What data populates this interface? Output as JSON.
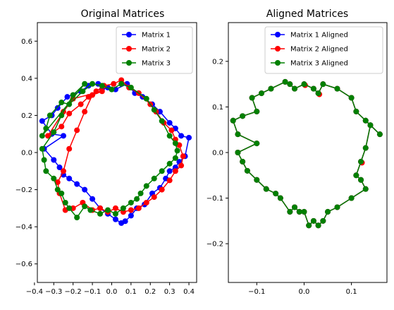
{
  "chart_data": [
    {
      "type": "line",
      "title": "Original Matrices",
      "xlim": [
        -0.385,
        0.44
      ],
      "ylim": [
        -0.7,
        0.7
      ],
      "xticks": [
        -0.4,
        -0.3,
        -0.2,
        -0.1,
        0.0,
        0.1,
        0.2,
        0.3,
        0.4
      ],
      "xtick_labels": [
        "−0.4",
        "−0.3",
        "−0.2",
        "−0.1",
        "0.0",
        "0.1",
        "0.2",
        "0.3",
        "0.4"
      ],
      "yticks": [
        -0.6,
        -0.4,
        -0.2,
        0.0,
        0.2,
        0.4,
        0.6
      ],
      "ytick_labels": [
        "−0.6",
        "−0.4",
        "−0.2",
        "0.0",
        "0.2",
        "0.4",
        "0.6"
      ],
      "grid": false,
      "legend_position": "top-right",
      "series": [
        {
          "name": "Matrix 1",
          "color": "#0000ff",
          "x": [
            -0.36,
            -0.31,
            -0.28,
            -0.23,
            -0.16,
            -0.12,
            -0.07,
            -0.05,
            -0.02,
            0.02,
            0.08,
            0.12,
            0.16,
            0.21,
            0.25,
            0.3,
            0.33,
            0.36,
            0.4,
            0.38,
            0.35,
            0.33,
            0.3,
            0.28,
            0.25,
            0.21,
            0.17,
            0.13,
            0.1,
            0.07,
            0.05,
            0.02,
            -0.02,
            -0.06,
            -0.1,
            -0.14,
            -0.18,
            -0.22,
            -0.25,
            -0.27,
            -0.3,
            -0.35,
            -0.25,
            -0.31
          ],
          "y": [
            0.17,
            0.2,
            0.24,
            0.3,
            0.33,
            0.36,
            0.37,
            0.34,
            0.35,
            0.34,
            0.37,
            0.32,
            0.3,
            0.26,
            0.22,
            0.16,
            0.13,
            0.09,
            0.08,
            -0.02,
            -0.05,
            -0.08,
            -0.1,
            -0.14,
            -0.19,
            -0.22,
            -0.28,
            -0.3,
            -0.34,
            -0.37,
            -0.38,
            -0.36,
            -0.33,
            -0.3,
            -0.25,
            -0.2,
            -0.17,
            -0.14,
            -0.12,
            -0.08,
            -0.04,
            0.02,
            0.09,
            0.1
          ]
        },
        {
          "name": "Matrix 2",
          "color": "#ff0000",
          "x": [
            -0.33,
            -0.26,
            -0.22,
            -0.16,
            -0.12,
            -0.08,
            -0.04,
            0.01,
            0.05,
            0.09,
            0.14,
            0.2,
            0.23,
            0.27,
            0.31,
            0.33,
            0.35,
            0.37,
            0.36,
            0.33,
            0.3,
            0.26,
            0.22,
            0.18,
            0.14,
            0.1,
            0.06,
            0.02,
            -0.02,
            -0.06,
            -0.1,
            -0.15,
            -0.2,
            -0.24,
            -0.27,
            -0.28,
            -0.25,
            -0.22,
            -0.18,
            -0.14,
            -0.1,
            -0.05,
            -0.2,
            -0.25
          ],
          "y": [
            0.09,
            0.14,
            0.21,
            0.26,
            0.3,
            0.33,
            0.36,
            0.37,
            0.39,
            0.35,
            0.32,
            0.26,
            0.22,
            0.16,
            0.12,
            0.07,
            0.04,
            -0.02,
            -0.07,
            -0.1,
            -0.15,
            -0.2,
            -0.24,
            -0.27,
            -0.3,
            -0.31,
            -0.32,
            -0.3,
            -0.32,
            -0.3,
            -0.31,
            -0.27,
            -0.3,
            -0.31,
            -0.22,
            -0.16,
            -0.1,
            0.02,
            0.12,
            0.22,
            0.31,
            0.33,
            0.29,
            0.22
          ]
        },
        {
          "name": "Matrix 3",
          "color": "#008000",
          "x": [
            -0.36,
            -0.34,
            -0.32,
            -0.26,
            -0.22,
            -0.15,
            -0.1,
            -0.05,
            0.0,
            0.05,
            0.1,
            0.18,
            0.22,
            0.26,
            0.3,
            0.33,
            0.34,
            0.33,
            0.3,
            0.26,
            0.22,
            0.18,
            0.15,
            0.13,
            0.1,
            0.06,
            0.02,
            -0.02,
            -0.06,
            -0.11,
            -0.14,
            -0.18,
            -0.22,
            -0.24,
            -0.26,
            -0.28,
            -0.3,
            -0.34,
            -0.35,
            -0.36,
            -0.3,
            -0.26,
            -0.2,
            -0.14
          ],
          "y": [
            0.09,
            0.13,
            0.2,
            0.27,
            0.26,
            0.33,
            0.37,
            0.36,
            0.34,
            0.37,
            0.35,
            0.29,
            0.23,
            0.17,
            0.09,
            0.05,
            0.01,
            -0.03,
            -0.06,
            -0.1,
            -0.14,
            -0.18,
            -0.22,
            -0.25,
            -0.27,
            -0.3,
            -0.33,
            -0.31,
            -0.33,
            -0.31,
            -0.29,
            -0.35,
            -0.3,
            -0.27,
            -0.22,
            -0.2,
            -0.14,
            -0.1,
            -0.04,
            0.02,
            0.11,
            0.2,
            0.31,
            0.37
          ]
        }
      ]
    },
    {
      "type": "line",
      "title": "Aligned Matrices",
      "xlim": [
        -0.16,
        0.175
      ],
      "ylim": [
        -0.285,
        0.285
      ],
      "xticks": [
        -0.1,
        0.0,
        0.1
      ],
      "xtick_labels": [
        "−0.1",
        "0.0",
        "0.1"
      ],
      "yticks": [
        -0.2,
        -0.1,
        0.0,
        0.1,
        0.2
      ],
      "ytick_labels": [
        "−0.2",
        "−0.1",
        "0.0",
        "0.1",
        "0.2"
      ],
      "grid": false,
      "legend_position": "top-right",
      "aligned_points": {
        "x": [
          -0.15,
          -0.13,
          -0.1,
          -0.11,
          -0.09,
          -0.07,
          -0.04,
          -0.03,
          -0.02,
          0.0,
          0.02,
          0.03,
          0.04,
          0.07,
          0.1,
          0.11,
          0.13,
          0.16,
          0.14,
          0.13,
          0.12,
          0.11,
          0.12,
          0.13,
          0.1,
          0.07,
          0.05,
          0.04,
          0.03,
          0.02,
          0.01,
          0.0,
          -0.01,
          -0.02,
          -0.03,
          -0.05,
          -0.06,
          -0.08,
          -0.1,
          -0.12,
          -0.13,
          -0.14,
          -0.1,
          -0.14
        ],
        "y": [
          0.07,
          0.08,
          0.09,
          0.12,
          0.13,
          0.14,
          0.155,
          0.15,
          0.14,
          0.15,
          0.14,
          0.13,
          0.15,
          0.14,
          0.12,
          0.09,
          0.07,
          0.04,
          0.06,
          0.01,
          -0.02,
          -0.05,
          -0.06,
          -0.08,
          -0.1,
          -0.12,
          -0.13,
          -0.15,
          -0.16,
          -0.15,
          -0.16,
          -0.13,
          -0.13,
          -0.12,
          -0.13,
          -0.1,
          -0.09,
          -0.08,
          -0.06,
          -0.04,
          -0.02,
          0.0,
          0.02,
          0.04
        ]
      },
      "series": [
        {
          "name": "Matrix 1 Aligned",
          "color": "#0000ff",
          "highlight_index": []
        },
        {
          "name": "Matrix 2 Aligned",
          "color": "#ff0000",
          "highlight_index": [
            9,
            11,
            20
          ]
        },
        {
          "name": "Matrix 3 Aligned",
          "color": "#008000",
          "highlight_index": []
        }
      ]
    }
  ]
}
